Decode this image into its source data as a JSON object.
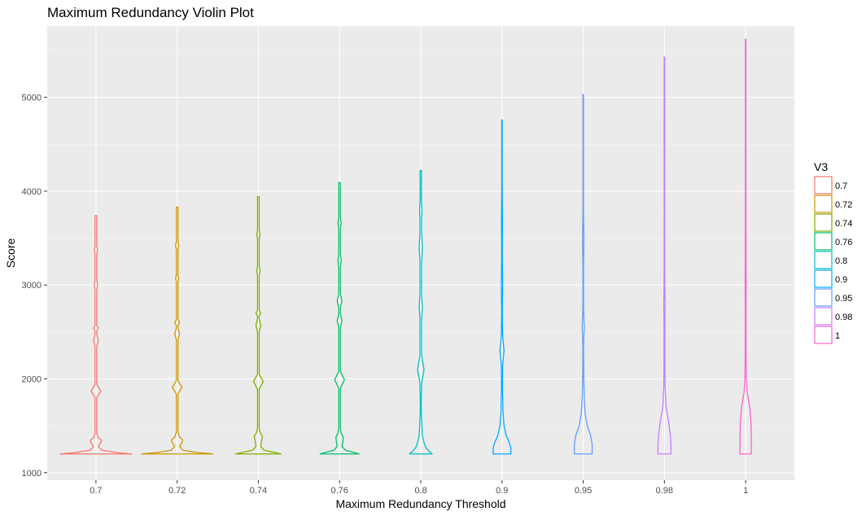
{
  "chart_data": {
    "type": "violin",
    "title": "Maximum Redundancy Violin Plot",
    "xlabel": "Maximum Redundancy Threshold",
    "ylabel": "Score",
    "legend_title": "V3",
    "legend_position": "right",
    "grid": true,
    "ylim": [
      920,
      5760
    ],
    "yticks": [
      "1000",
      "2000",
      "3000",
      "4000",
      "5000"
    ],
    "categories": [
      "0.7",
      "0.72",
      "0.74",
      "0.76",
      "0.8",
      "0.9",
      "0.95",
      "0.98",
      "1"
    ],
    "series": [
      {
        "name": "0.7",
        "color": "#F8766D",
        "min": 1200,
        "max": 3740,
        "max_half_width": 0.44,
        "profile": [
          [
            1200,
            0.44
          ],
          [
            1215,
            0.25
          ],
          [
            1240,
            0.07
          ],
          [
            1280,
            0.03
          ],
          [
            1320,
            0.06
          ],
          [
            1345,
            0.07
          ],
          [
            1370,
            0.03
          ],
          [
            1420,
            0.01
          ],
          [
            1800,
            0.01
          ],
          [
            1870,
            0.06
          ],
          [
            1940,
            0.01
          ],
          [
            2350,
            0.01
          ],
          [
            2410,
            0.03
          ],
          [
            2470,
            0.01
          ],
          [
            2510,
            0.01
          ],
          [
            2540,
            0.03
          ],
          [
            2570,
            0.01
          ],
          [
            2950,
            0.01
          ],
          [
            3000,
            0.02
          ],
          [
            3050,
            0.01
          ],
          [
            3330,
            0.01
          ],
          [
            3370,
            0.02
          ],
          [
            3410,
            0.01
          ],
          [
            3740,
            0.01
          ]
        ]
      },
      {
        "name": "0.72",
        "color": "#CD9600",
        "min": 1200,
        "max": 3830,
        "max_half_width": 0.44,
        "profile": [
          [
            1200,
            0.44
          ],
          [
            1215,
            0.25
          ],
          [
            1240,
            0.07
          ],
          [
            1280,
            0.03
          ],
          [
            1320,
            0.06
          ],
          [
            1350,
            0.07
          ],
          [
            1380,
            0.03
          ],
          [
            1430,
            0.01
          ],
          [
            1840,
            0.01
          ],
          [
            1910,
            0.06
          ],
          [
            1980,
            0.01
          ],
          [
            2420,
            0.01
          ],
          [
            2480,
            0.03
          ],
          [
            2540,
            0.01
          ],
          [
            2570,
            0.01
          ],
          [
            2600,
            0.03
          ],
          [
            2630,
            0.01
          ],
          [
            3040,
            0.01
          ],
          [
            3070,
            0.02
          ],
          [
            3100,
            0.01
          ],
          [
            3380,
            0.01
          ],
          [
            3420,
            0.02
          ],
          [
            3460,
            0.01
          ],
          [
            3830,
            0.01
          ]
        ]
      },
      {
        "name": "0.74",
        "color": "#7CAE00",
        "min": 1200,
        "max": 3940,
        "max_half_width": 0.28,
        "profile": [
          [
            1200,
            0.28
          ],
          [
            1215,
            0.2
          ],
          [
            1240,
            0.07
          ],
          [
            1280,
            0.03
          ],
          [
            1340,
            0.04
          ],
          [
            1390,
            0.05
          ],
          [
            1430,
            0.02
          ],
          [
            1480,
            0.01
          ],
          [
            1890,
            0.01
          ],
          [
            1970,
            0.06
          ],
          [
            2050,
            0.01
          ],
          [
            2500,
            0.01
          ],
          [
            2570,
            0.03
          ],
          [
            2640,
            0.01
          ],
          [
            2670,
            0.01
          ],
          [
            2700,
            0.03
          ],
          [
            2730,
            0.01
          ],
          [
            3100,
            0.01
          ],
          [
            3150,
            0.02
          ],
          [
            3200,
            0.01
          ],
          [
            3500,
            0.01
          ],
          [
            3540,
            0.02
          ],
          [
            3580,
            0.01
          ],
          [
            3940,
            0.01
          ]
        ]
      },
      {
        "name": "0.76",
        "color": "#00BE67",
        "min": 1200,
        "max": 4090,
        "max_half_width": 0.24,
        "profile": [
          [
            1200,
            0.24
          ],
          [
            1215,
            0.18
          ],
          [
            1240,
            0.07
          ],
          [
            1280,
            0.03
          ],
          [
            1330,
            0.04
          ],
          [
            1380,
            0.045
          ],
          [
            1420,
            0.02
          ],
          [
            1470,
            0.01
          ],
          [
            1900,
            0.01
          ],
          [
            1990,
            0.06
          ],
          [
            2080,
            0.01
          ],
          [
            2550,
            0.01
          ],
          [
            2620,
            0.03
          ],
          [
            2690,
            0.01
          ],
          [
            2760,
            0.01
          ],
          [
            2830,
            0.03
          ],
          [
            2900,
            0.01
          ],
          [
            3190,
            0.01
          ],
          [
            3260,
            0.02
          ],
          [
            3330,
            0.01
          ],
          [
            3600,
            0.01
          ],
          [
            3660,
            0.02
          ],
          [
            3720,
            0.01
          ],
          [
            4090,
            0.01
          ]
        ]
      },
      {
        "name": "0.8",
        "color": "#00BFC4",
        "min": 1200,
        "max": 4220,
        "max_half_width": 0.14,
        "profile": [
          [
            1200,
            0.14
          ],
          [
            1230,
            0.1
          ],
          [
            1270,
            0.06
          ],
          [
            1320,
            0.04
          ],
          [
            1400,
            0.02
          ],
          [
            1480,
            0.015
          ],
          [
            1560,
            0.01
          ],
          [
            1700,
            0.005
          ],
          [
            1950,
            0.01
          ],
          [
            2100,
            0.04
          ],
          [
            2250,
            0.01
          ],
          [
            2650,
            0.01
          ],
          [
            2770,
            0.02
          ],
          [
            2890,
            0.01
          ],
          [
            3250,
            0.01
          ],
          [
            3400,
            0.02
          ],
          [
            3550,
            0.01
          ],
          [
            3700,
            0.01
          ],
          [
            3800,
            0.015
          ],
          [
            3900,
            0.008
          ],
          [
            4220,
            0.008
          ]
        ]
      },
      {
        "name": "0.9",
        "color": "#00A9FF",
        "min": 1200,
        "max": 4760,
        "max_half_width": 0.11,
        "profile": [
          [
            1200,
            0.11
          ],
          [
            1260,
            0.11
          ],
          [
            1320,
            0.09
          ],
          [
            1400,
            0.05
          ],
          [
            1500,
            0.025
          ],
          [
            1650,
            0.012
          ],
          [
            1900,
            0.006
          ],
          [
            2150,
            0.008
          ],
          [
            2300,
            0.025
          ],
          [
            2450,
            0.008
          ],
          [
            2700,
            0.004
          ],
          [
            3000,
            0.008
          ],
          [
            3300,
            0.004
          ],
          [
            3700,
            0.006
          ],
          [
            4000,
            0.003
          ],
          [
            4760,
            0.003
          ]
        ]
      },
      {
        "name": "0.95",
        "color": "#619CFF",
        "min": 1200,
        "max": 5030,
        "max_half_width": 0.11,
        "profile": [
          [
            1200,
            0.11
          ],
          [
            1300,
            0.11
          ],
          [
            1400,
            0.09
          ],
          [
            1500,
            0.05
          ],
          [
            1620,
            0.025
          ],
          [
            1800,
            0.012
          ],
          [
            2050,
            0.006
          ],
          [
            2350,
            0.004
          ],
          [
            2550,
            0.012
          ],
          [
            2750,
            0.004
          ],
          [
            3200,
            0.004
          ],
          [
            3500,
            0.008
          ],
          [
            3800,
            0.003
          ],
          [
            5030,
            0.003
          ]
        ]
      },
      {
        "name": "0.98",
        "color": "#C77CFF",
        "min": 1200,
        "max": 5430,
        "max_half_width": 0.08,
        "profile": [
          [
            1200,
            0.08
          ],
          [
            1300,
            0.08
          ],
          [
            1420,
            0.07
          ],
          [
            1550,
            0.05
          ],
          [
            1700,
            0.02
          ],
          [
            1900,
            0.008
          ],
          [
            2200,
            0.005
          ],
          [
            2600,
            0.005
          ],
          [
            2800,
            0.008
          ],
          [
            3000,
            0.004
          ],
          [
            4000,
            0.003
          ],
          [
            4600,
            0.004
          ],
          [
            5430,
            0.003
          ]
        ]
      },
      {
        "name": "1",
        "color": "#FF61CC",
        "min": 1200,
        "max": 5620,
        "max_half_width": 0.07,
        "profile": [
          [
            1200,
            0.07
          ],
          [
            1400,
            0.07
          ],
          [
            1550,
            0.065
          ],
          [
            1700,
            0.05
          ],
          [
            1850,
            0.02
          ],
          [
            2000,
            0.008
          ],
          [
            2300,
            0.005
          ],
          [
            2700,
            0.004
          ],
          [
            3000,
            0.006
          ],
          [
            3300,
            0.004
          ],
          [
            4500,
            0.003
          ],
          [
            5620,
            0.003
          ]
        ]
      }
    ]
  }
}
